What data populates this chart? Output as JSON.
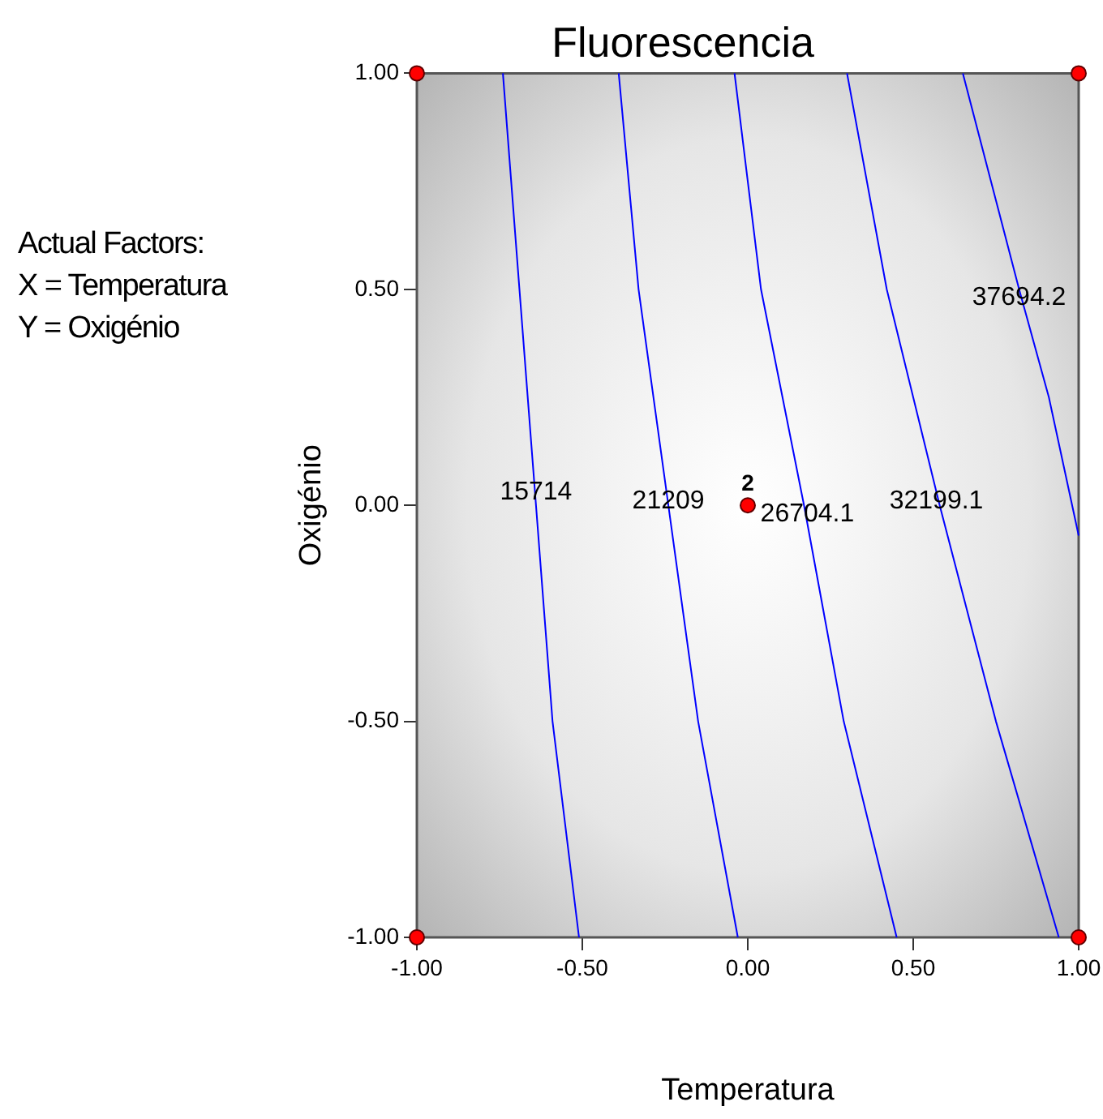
{
  "chart_data": {
    "type": "line",
    "title": "Fluorescencia",
    "xlabel": "Temperatura",
    "ylabel": "Oxigénio",
    "xlim": [
      -1,
      1
    ],
    "ylim": [
      -1,
      1
    ],
    "xticks": [
      {
        "value": -1,
        "label": "-1.00"
      },
      {
        "value": -0.5,
        "label": "-0.50"
      },
      {
        "value": 0,
        "label": "0.00"
      },
      {
        "value": 0.5,
        "label": "0.50"
      },
      {
        "value": 1,
        "label": "1.00"
      }
    ],
    "yticks": [
      {
        "value": -1,
        "label": "-1.00"
      },
      {
        "value": -0.5,
        "label": "-0.50"
      },
      {
        "value": 0,
        "label": "0.00"
      },
      {
        "value": 0.5,
        "label": "0.50"
      },
      {
        "value": 1,
        "label": "1.00"
      }
    ],
    "grid": false,
    "legend": false,
    "series": [
      {
        "type": "line",
        "color": "#0000ff",
        "x": [
          -0.74,
          -0.69,
          -0.64,
          -0.59,
          -0.51
        ],
        "values": [
          1,
          0.5,
          0,
          -0.5,
          -1
        ]
      },
      {
        "type": "line",
        "color": "#0000ff",
        "x": [
          -0.39,
          -0.33,
          -0.24,
          -0.15,
          -0.03
        ],
        "values": [
          1,
          0.5,
          0,
          -0.5,
          -1
        ]
      },
      {
        "type": "line",
        "color": "#0000ff",
        "x": [
          -0.04,
          0.04,
          0.17,
          0.29,
          0.45
        ],
        "values": [
          1,
          0.5,
          0,
          -0.5,
          -1
        ]
      },
      {
        "type": "line",
        "color": "#0000ff",
        "x": [
          0.3,
          0.42,
          0.58,
          0.75,
          0.94
        ],
        "values": [
          1,
          0.5,
          0,
          -0.5,
          -1
        ]
      },
      {
        "type": "line",
        "color": "#0000ff",
        "x": [
          0.65,
          0.82,
          0.91,
          1
        ],
        "values": [
          1,
          0.5,
          0.25,
          -0.07
        ]
      },
      {
        "type": "scatter",
        "color": "#ff0000",
        "marker": "circle",
        "x": [
          -1,
          1,
          -1,
          1,
          0
        ],
        "values": [
          1,
          1,
          -1,
          -1,
          0
        ]
      }
    ],
    "annotations": [
      "Actual Factors:",
      "X = Temperatura",
      "Y = Oxigénio",
      {
        "text": "15714",
        "x": -0.64,
        "y": 0.03
      },
      {
        "text": "21209",
        "x": -0.24,
        "y": 0.01
      },
      {
        "text": "26704.1",
        "x": 0.18,
        "y": -0.02
      },
      {
        "text": "32199.1",
        "x": 0.57,
        "y": 0.01
      },
      {
        "text": "37694.2",
        "x": 0.82,
        "y": 0.48
      },
      {
        "text": "2",
        "x": 0,
        "y": 0
      }
    ]
  }
}
